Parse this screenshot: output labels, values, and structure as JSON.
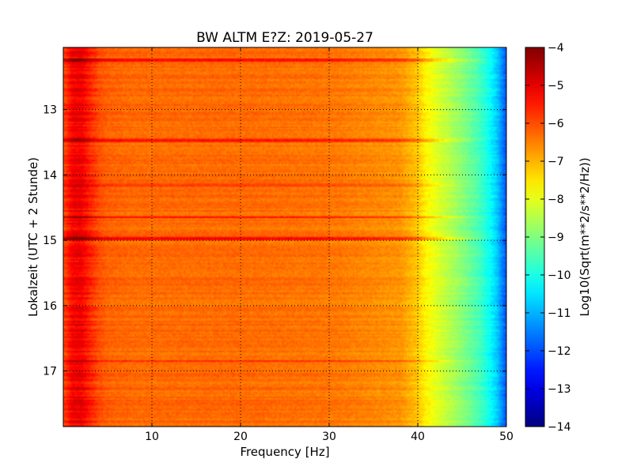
{
  "chart_data": {
    "type": "heatmap",
    "title": "BW ALTM E?Z: 2019-05-27",
    "xlabel": "Frequency [Hz]",
    "ylabel": "Lokalzeit (UTC + 2 Stunde)",
    "xlim": [
      0,
      50
    ],
    "ylim": [
      17.85,
      12.05
    ],
    "x_ticks": [
      10,
      20,
      30,
      40,
      50
    ],
    "y_ticks": [
      13,
      14,
      15,
      16,
      17
    ],
    "x_tick_labels": [
      "10",
      "20",
      "30",
      "40",
      "50"
    ],
    "y_tick_labels": [
      "13",
      "14",
      "15",
      "16",
      "17"
    ],
    "grid": true,
    "colormap": "jet",
    "colorbar": {
      "label": "Log10(Sqrt(m**2/s**2/Hz))",
      "range": [
        -14,
        -4
      ],
      "ticks": [
        -4,
        -5,
        -6,
        -7,
        -8,
        -9,
        -10,
        -11,
        -12,
        -13,
        -14
      ],
      "tick_labels": [
        "−4",
        "−5",
        "−6",
        "−7",
        "−8",
        "−9",
        "−10",
        "−11",
        "−12",
        "−13",
        "−14"
      ]
    },
    "spectrum_profile": {
      "frequency_hz": [
        0,
        1,
        2,
        3,
        4,
        5,
        8,
        10,
        20,
        30,
        38,
        40,
        41,
        43,
        45,
        47,
        48,
        49,
        50
      ],
      "level": [
        -6.0,
        -5.2,
        -5.1,
        -5.6,
        -6.0,
        -6.2,
        -6.3,
        -6.3,
        -6.3,
        -6.4,
        -6.7,
        -7.2,
        -7.7,
        -8.3,
        -8.9,
        -9.6,
        -10.1,
        -10.8,
        -12.0
      ]
    },
    "bright_lines": [
      {
        "hour": 12.25,
        "level_offset": 0.9
      },
      {
        "hour": 13.47,
        "level_offset": 1.0
      },
      {
        "hour": 14.15,
        "level_offset": 0.5
      },
      {
        "hour": 14.65,
        "level_offset": 0.9
      },
      {
        "hour": 14.98,
        "level_offset": 1.0
      },
      {
        "hour": 16.85,
        "level_offset": 0.6
      }
    ]
  }
}
